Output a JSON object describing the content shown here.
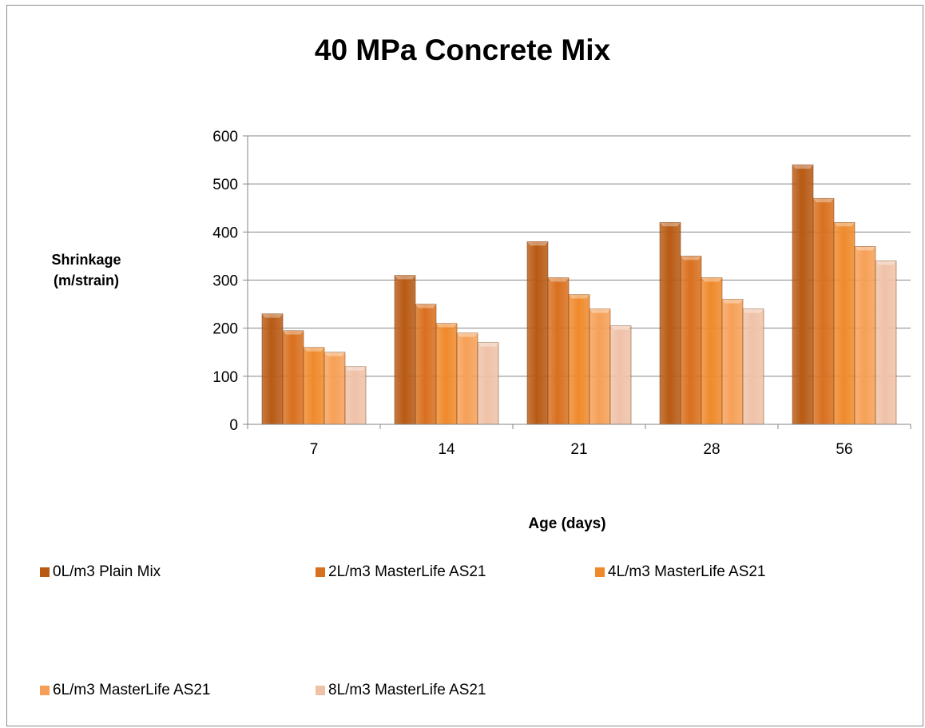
{
  "chart_data": {
    "type": "bar",
    "title": "40 MPa Concrete Mix",
    "ylabel_line1": "Shrinkage",
    "ylabel_line2": "(m/strain)",
    "xlabel": "Age (days)",
    "categories": [
      "7",
      "14",
      "21",
      "28",
      "56"
    ],
    "ylim": [
      0,
      600
    ],
    "yticks": [
      0,
      100,
      200,
      300,
      400,
      500,
      600
    ],
    "grid": true,
    "legend_position": "bottom",
    "series": [
      {
        "name": "0L/m3 Plain Mix",
        "values": [
          230,
          310,
          380,
          420,
          540
        ],
        "color": "#b85a14"
      },
      {
        "name": "2L/m3 MasterLife AS21",
        "values": [
          195,
          250,
          305,
          350,
          470
        ],
        "color": "#d9701f"
      },
      {
        "name": "4L/m3 MasterLife AS21",
        "values": [
          160,
          210,
          270,
          305,
          420
        ],
        "color": "#ef8a2c"
      },
      {
        "name": "6L/m3 MasterLife AS21",
        "values": [
          150,
          190,
          240,
          260,
          370
        ],
        "color": "#f6a057"
      },
      {
        "name": "8L/m3 MasterLife AS21",
        "values": [
          120,
          170,
          205,
          240,
          340
        ],
        "color": "#efc2a8"
      }
    ]
  }
}
